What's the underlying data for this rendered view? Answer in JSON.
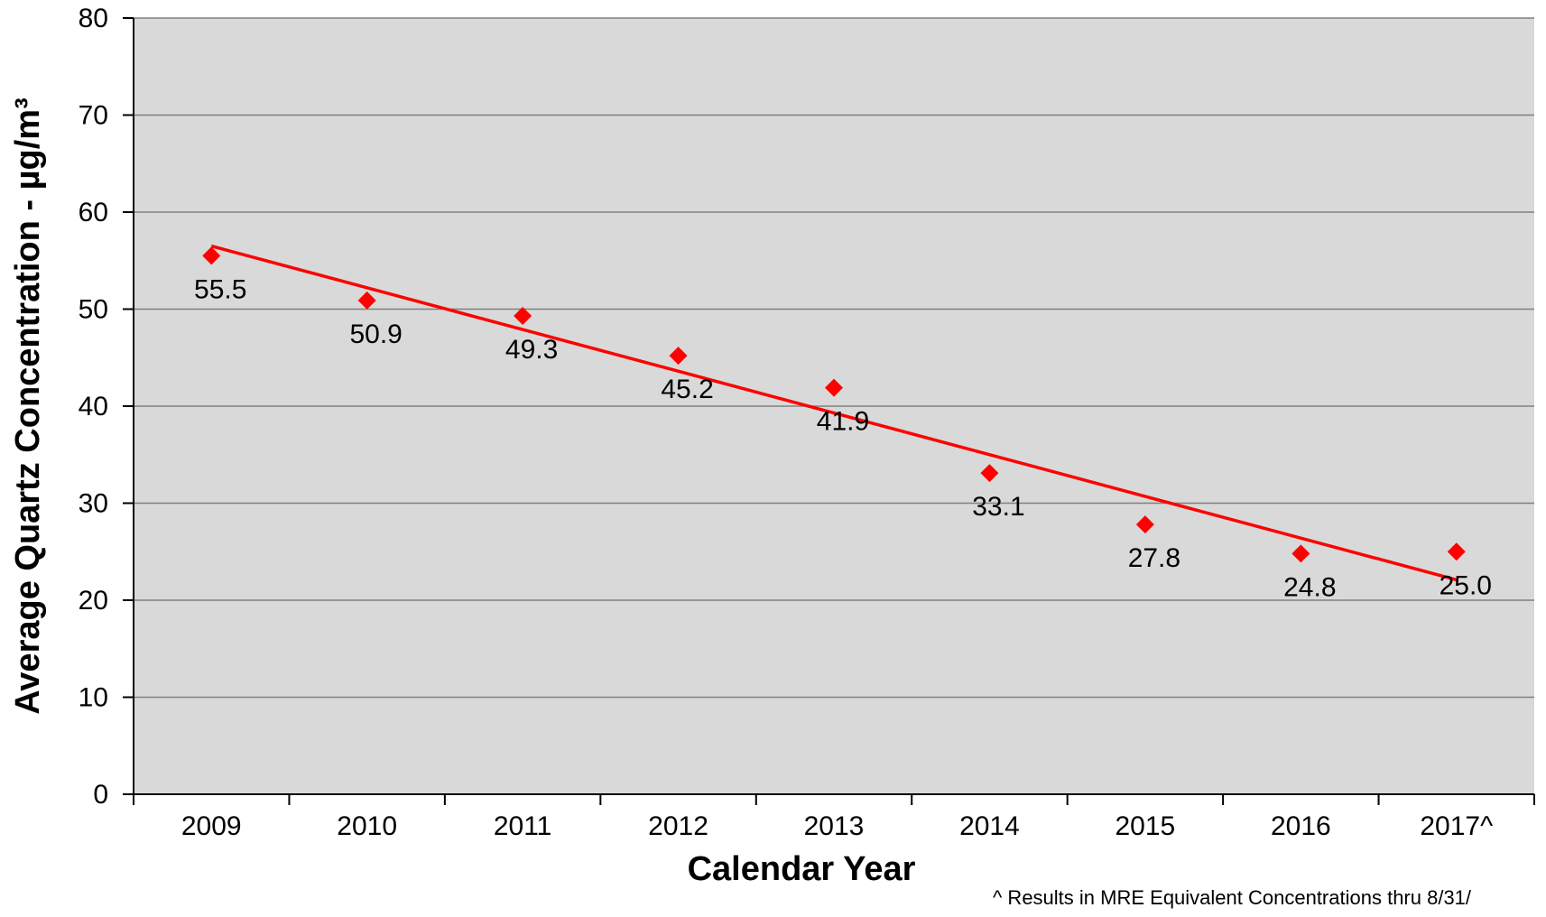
{
  "chart_data": {
    "type": "scatter",
    "title": "",
    "xlabel": "Calendar Year",
    "ylabel": "Average Quartz Concentration - µg/m³",
    "categories": [
      "2009",
      "2010",
      "2011",
      "2012",
      "2013",
      "2014",
      "2015",
      "2016",
      "2017^"
    ],
    "series": [
      {
        "values": [
          55.5,
          50.9,
          49.3,
          45.2,
          41.9,
          33.1,
          27.8,
          24.8,
          25.0
        ],
        "labels": [
          "55.5",
          "50.9",
          "49.3",
          "45.2",
          "41.9",
          "33.1",
          "27.8",
          "24.8",
          "25.0"
        ],
        "marker": "diamond",
        "color": "#ff0000"
      }
    ],
    "trendline": {
      "type": "linear",
      "color": "#ff0000",
      "start_value": 56.5,
      "end_value": 22.1
    },
    "ylim": [
      0,
      80
    ],
    "yticks": [
      "0",
      "10",
      "20",
      "30",
      "40",
      "50",
      "60",
      "70",
      "80"
    ],
    "grid": true,
    "plot_background": "#d9d9d9",
    "gridline_color": "#808080",
    "legend": "none",
    "footnote": "^ Results in MRE Equivalent Concentrations thru 8/31/"
  }
}
